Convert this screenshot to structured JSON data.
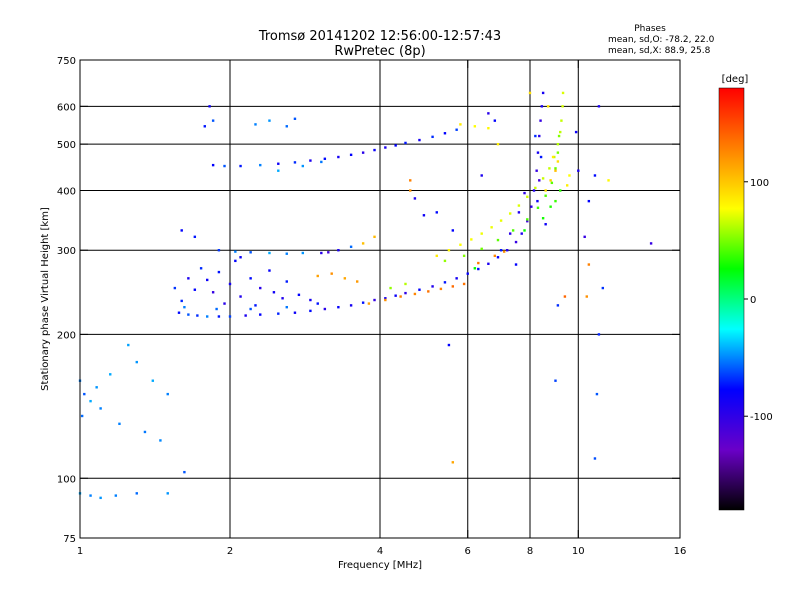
{
  "chart_data": {
    "type": "scatter",
    "title": "Tromsø 20141202 12:56:00-12:57:43",
    "subtitle": "RwPretec (8p)",
    "xlabel": "Frequency [MHz]",
    "ylabel": "Stationary phase Virtual Height [km]",
    "x_scale": "log",
    "y_scale": "log",
    "xlim": [
      1,
      16
    ],
    "ylim": [
      75,
      750
    ],
    "x_ticks": [
      1,
      2,
      4,
      6,
      8,
      10,
      16
    ],
    "x_tick_labels": [
      "1",
      "2",
      "4",
      "6",
      "8",
      "10",
      "16"
    ],
    "y_ticks": [
      75,
      100,
      200,
      300,
      400,
      500,
      600,
      750
    ],
    "y_tick_labels": [
      "75",
      "100",
      "200",
      "300",
      "400",
      "500",
      "600",
      "750"
    ],
    "x_gridlines": [
      2,
      4,
      6,
      8,
      10
    ],
    "y_gridlines": [
      100,
      200,
      300,
      400,
      500,
      600
    ],
    "grid": true,
    "stats": {
      "heading": "Phases",
      "line_o": "mean, sd,O: -78.2, 22.0",
      "line_x": "mean, sd,X:  88.9, 25.8"
    },
    "colorbar": {
      "label": "[deg]",
      "range": [
        -180,
        180
      ],
      "ticks": [
        100,
        0,
        -100
      ],
      "tick_labels": [
        "100",
        "0",
        "-100"
      ],
      "colors": [
        "#ff0000",
        "#ff8000",
        "#ffff00",
        "#00ff00",
        "#00ffff",
        "#0000ff",
        "#6a00c8",
        "#000000"
      ]
    },
    "series": [
      {
        "points": [
          [
            1.58,
            222,
            -98
          ],
          [
            1.65,
            220,
            -80
          ],
          [
            1.72,
            219,
            -90
          ],
          [
            1.8,
            218,
            -70
          ],
          [
            1.9,
            218,
            -95
          ],
          [
            2.0,
            218,
            -85
          ],
          [
            2.15,
            219,
            -110
          ],
          [
            2.3,
            220,
            -100
          ],
          [
            2.5,
            221,
            -92
          ],
          [
            2.7,
            222,
            -105
          ],
          [
            2.9,
            224,
            -98
          ],
          [
            3.1,
            226,
            -115
          ],
          [
            3.3,
            228,
            -102
          ],
          [
            3.5,
            230,
            -108
          ],
          [
            3.7,
            233,
            -96
          ],
          [
            3.9,
            236,
            -120
          ],
          [
            4.1,
            238,
            -110
          ],
          [
            4.3,
            241,
            -105
          ],
          [
            4.5,
            244,
            -118
          ],
          [
            4.8,
            248,
            -100
          ],
          [
            5.1,
            252,
            -112
          ],
          [
            5.4,
            257,
            -95
          ],
          [
            5.7,
            262,
            -108
          ],
          [
            6.0,
            268,
            -102
          ],
          [
            6.3,
            274,
            -98
          ],
          [
            6.6,
            281,
            -110
          ],
          [
            6.9,
            290,
            -104
          ],
          [
            7.2,
            300,
            -115
          ],
          [
            7.5,
            312,
            -120
          ],
          [
            7.7,
            325,
            -110
          ],
          [
            7.9,
            345,
            -125
          ],
          [
            8.05,
            370,
            -118
          ],
          [
            8.15,
            400,
            -112
          ],
          [
            8.25,
            440,
            -120
          ],
          [
            8.3,
            480,
            -108
          ],
          [
            8.35,
            520,
            -115
          ],
          [
            8.4,
            560,
            -120
          ],
          [
            8.45,
            600,
            -110
          ],
          [
            8.2,
            520,
            -90
          ],
          [
            8.35,
            420,
            -125
          ],
          [
            8.28,
            380,
            -105
          ],
          [
            8.42,
            470,
            -95
          ],
          [
            1.6,
            235,
            -92
          ],
          [
            1.7,
            248,
            -100
          ],
          [
            1.8,
            260,
            -104
          ],
          [
            1.9,
            270,
            -96
          ],
          [
            2.0,
            255,
            -108
          ],
          [
            2.1,
            240,
            -112
          ],
          [
            2.2,
            262,
            -98
          ],
          [
            2.3,
            250,
            -116
          ],
          [
            2.4,
            272,
            -102
          ],
          [
            2.6,
            258,
            -94
          ],
          [
            1.65,
            262,
            -110
          ],
          [
            1.75,
            275,
            -90
          ],
          [
            1.85,
            245,
            -120
          ],
          [
            2.05,
            285,
            -100
          ],
          [
            2.25,
            230,
            -95
          ],
          [
            2.45,
            245,
            -106
          ],
          [
            1.55,
            250,
            -88
          ],
          [
            1.95,
            232,
            -115
          ],
          [
            2.1,
            290,
            -104
          ],
          [
            2.55,
            238,
            -112
          ],
          [
            2.75,
            242,
            -100
          ],
          [
            2.9,
            236,
            -108
          ],
          [
            3.0,
            232,
            -96
          ],
          [
            1.62,
            228,
            -70
          ],
          [
            1.88,
            226,
            -75
          ],
          [
            2.2,
            226,
            -80
          ],
          [
            2.6,
            228,
            -72
          ],
          [
            1.85,
            452,
            -100
          ],
          [
            1.95,
            450,
            -80
          ],
          [
            2.1,
            450,
            -95
          ],
          [
            2.3,
            452,
            -70
          ],
          [
            2.5,
            455,
            -105
          ],
          [
            2.7,
            458,
            -90
          ],
          [
            2.9,
            462,
            -110
          ],
          [
            3.1,
            466,
            -98
          ],
          [
            3.3,
            470,
            -108
          ],
          [
            3.5,
            475,
            -100
          ],
          [
            3.7,
            480,
            -115
          ],
          [
            3.9,
            486,
            -104
          ],
          [
            4.1,
            492,
            -110
          ],
          [
            4.3,
            497,
            -100
          ],
          [
            4.5,
            503,
            -95
          ],
          [
            4.8,
            510,
            -108
          ],
          [
            5.1,
            518,
            -90
          ],
          [
            5.4,
            527,
            -100
          ],
          [
            5.7,
            536,
            -85
          ],
          [
            2.5,
            440,
            -60
          ],
          [
            2.8,
            450,
            -65
          ],
          [
            3.05,
            459,
            -72
          ],
          [
            1.9,
            300,
            -88
          ],
          [
            2.05,
            298,
            -70
          ],
          [
            2.2,
            297,
            -80
          ],
          [
            2.4,
            296,
            -60
          ],
          [
            2.6,
            295,
            -70
          ],
          [
            2.8,
            296,
            -65
          ],
          [
            3.05,
            296,
            -115
          ],
          [
            3.15,
            297,
            -125
          ],
          [
            3.3,
            300,
            -110
          ],
          [
            3.5,
            305,
            -75
          ],
          [
            1.78,
            545,
            -95
          ],
          [
            1.85,
            560,
            -80
          ],
          [
            2.25,
            550,
            -70
          ],
          [
            2.4,
            560,
            -65
          ],
          [
            2.6,
            545,
            -75
          ],
          [
            2.7,
            565,
            -80
          ],
          [
            1.6,
            330,
            -100
          ],
          [
            1.7,
            320,
            -95
          ],
          [
            1.82,
            600,
            -105
          ],
          [
            4.7,
            385,
            -110
          ],
          [
            4.9,
            355,
            -105
          ],
          [
            5.2,
            360,
            -98
          ],
          [
            6.6,
            580,
            -115
          ],
          [
            6.8,
            560,
            -100
          ],
          [
            6.4,
            430,
            -110
          ],
          [
            5.6,
            330,
            -100
          ],
          [
            1.0,
            160,
            -70
          ],
          [
            1.02,
            150,
            -80
          ],
          [
            1.05,
            145,
            -60
          ],
          [
            1.08,
            155,
            -65
          ],
          [
            1.1,
            140,
            -70
          ],
          [
            1.01,
            135,
            -75
          ],
          [
            1.15,
            165,
            -60
          ],
          [
            1.2,
            130,
            -70
          ],
          [
            1.3,
            175,
            -65
          ],
          [
            1.4,
            160,
            -60
          ],
          [
            1.5,
            150,
            -70
          ],
          [
            1.35,
            125,
            -72
          ],
          [
            1.45,
            120,
            -68
          ],
          [
            1.25,
            190,
            -62
          ],
          [
            1.0,
            93,
            -60
          ],
          [
            1.05,
            92,
            -70
          ],
          [
            1.1,
            91,
            -65
          ],
          [
            1.18,
            92,
            -70
          ],
          [
            1.3,
            93,
            -75
          ],
          [
            1.5,
            93,
            -65
          ],
          [
            1.62,
            103,
            -80
          ],
          [
            7.3,
            325,
            -115
          ],
          [
            7.6,
            360,
            -112
          ],
          [
            7.8,
            395,
            -118
          ],
          [
            8.5,
            640,
            -108
          ],
          [
            8.6,
            340,
            -105
          ],
          [
            7.5,
            280,
            -100
          ],
          [
            7.0,
            300,
            -95
          ],
          [
            10.3,
            320,
            -120
          ],
          [
            10.0,
            440,
            -110
          ],
          [
            9.9,
            530,
            -105
          ],
          [
            10.5,
            380,
            -100
          ],
          [
            11.0,
            600,
            -110
          ],
          [
            10.8,
            430,
            -98
          ],
          [
            11.2,
            250,
            -88
          ],
          [
            11.0,
            200,
            -92
          ],
          [
            10.9,
            150,
            -80
          ],
          [
            10.8,
            110,
            -82
          ],
          [
            14.0,
            310,
            -120
          ],
          [
            9.1,
            230,
            -90
          ],
          [
            9.0,
            160,
            -85
          ],
          [
            5.5,
            190,
            -100
          ]
        ]
      },
      {
        "points": [
          [
            5.2,
            292,
            96
          ],
          [
            5.5,
            300,
            92
          ],
          [
            5.8,
            308,
            90
          ],
          [
            6.1,
            316,
            88
          ],
          [
            6.4,
            325,
            86
          ],
          [
            6.7,
            335,
            85
          ],
          [
            7.0,
            346,
            84
          ],
          [
            7.3,
            358,
            82
          ],
          [
            7.6,
            372,
            80
          ],
          [
            7.9,
            388,
            78
          ],
          [
            8.2,
            405,
            76
          ],
          [
            8.5,
            424,
            75
          ],
          [
            8.75,
            445,
            74
          ],
          [
            8.95,
            470,
            72
          ],
          [
            9.1,
            500,
            70
          ],
          [
            9.2,
            530,
            72
          ],
          [
            9.25,
            560,
            74
          ],
          [
            9.3,
            600,
            78
          ],
          [
            9.32,
            640,
            80
          ],
          [
            5.4,
            285,
            60
          ],
          [
            5.9,
            292,
            55
          ],
          [
            6.4,
            302,
            50
          ],
          [
            6.9,
            315,
            45
          ],
          [
            7.4,
            330,
            42
          ],
          [
            7.9,
            348,
            40
          ],
          [
            8.3,
            368,
            40
          ],
          [
            8.6,
            390,
            42
          ],
          [
            8.85,
            415,
            45
          ],
          [
            9.0,
            445,
            48
          ],
          [
            9.1,
            480,
            52
          ],
          [
            9.15,
            520,
            55
          ],
          [
            8.6,
            400,
            100
          ],
          [
            8.8,
            420,
            105
          ],
          [
            9.0,
            440,
            110
          ],
          [
            9.1,
            460,
            100
          ],
          [
            8.9,
            470,
            95
          ],
          [
            8.0,
            640,
            100
          ],
          [
            8.7,
            600,
            98
          ],
          [
            9.6,
            430,
            90
          ],
          [
            9.5,
            410,
            95
          ],
          [
            11.5,
            420,
            92
          ],
          [
            6.9,
            500,
            95
          ],
          [
            6.2,
            545,
            90
          ],
          [
            6.6,
            540,
            92
          ],
          [
            5.8,
            550,
            96
          ],
          [
            4.5,
            255,
            70
          ],
          [
            4.2,
            250,
            60
          ],
          [
            9.0,
            380,
            35
          ],
          [
            9.2,
            400,
            30
          ],
          [
            8.5,
            350,
            25
          ],
          [
            8.8,
            370,
            28
          ],
          [
            7.8,
            330,
            22
          ],
          [
            6.2,
            275,
            20
          ],
          [
            3.8,
            232,
            120
          ],
          [
            4.1,
            236,
            125
          ],
          [
            4.4,
            240,
            130
          ],
          [
            4.7,
            243,
            128
          ],
          [
            5.0,
            246,
            135
          ],
          [
            5.3,
            249,
            130
          ],
          [
            5.6,
            252,
            138
          ],
          [
            5.9,
            255,
            135
          ],
          [
            3.0,
            265,
            120
          ],
          [
            3.2,
            268,
            125
          ],
          [
            3.4,
            262,
            118
          ],
          [
            3.6,
            258,
            122
          ],
          [
            6.3,
            282,
            132
          ],
          [
            6.8,
            292,
            128
          ],
          [
            7.1,
            298,
            125
          ],
          [
            4.6,
            420,
            130
          ],
          [
            4.6,
            400,
            125
          ],
          [
            10.5,
            280,
            130
          ],
          [
            10.4,
            240,
            125
          ],
          [
            9.4,
            240,
            140
          ],
          [
            5.6,
            108,
            118
          ],
          [
            3.7,
            310,
            110
          ],
          [
            3.9,
            320,
            112
          ]
        ]
      }
    ]
  }
}
